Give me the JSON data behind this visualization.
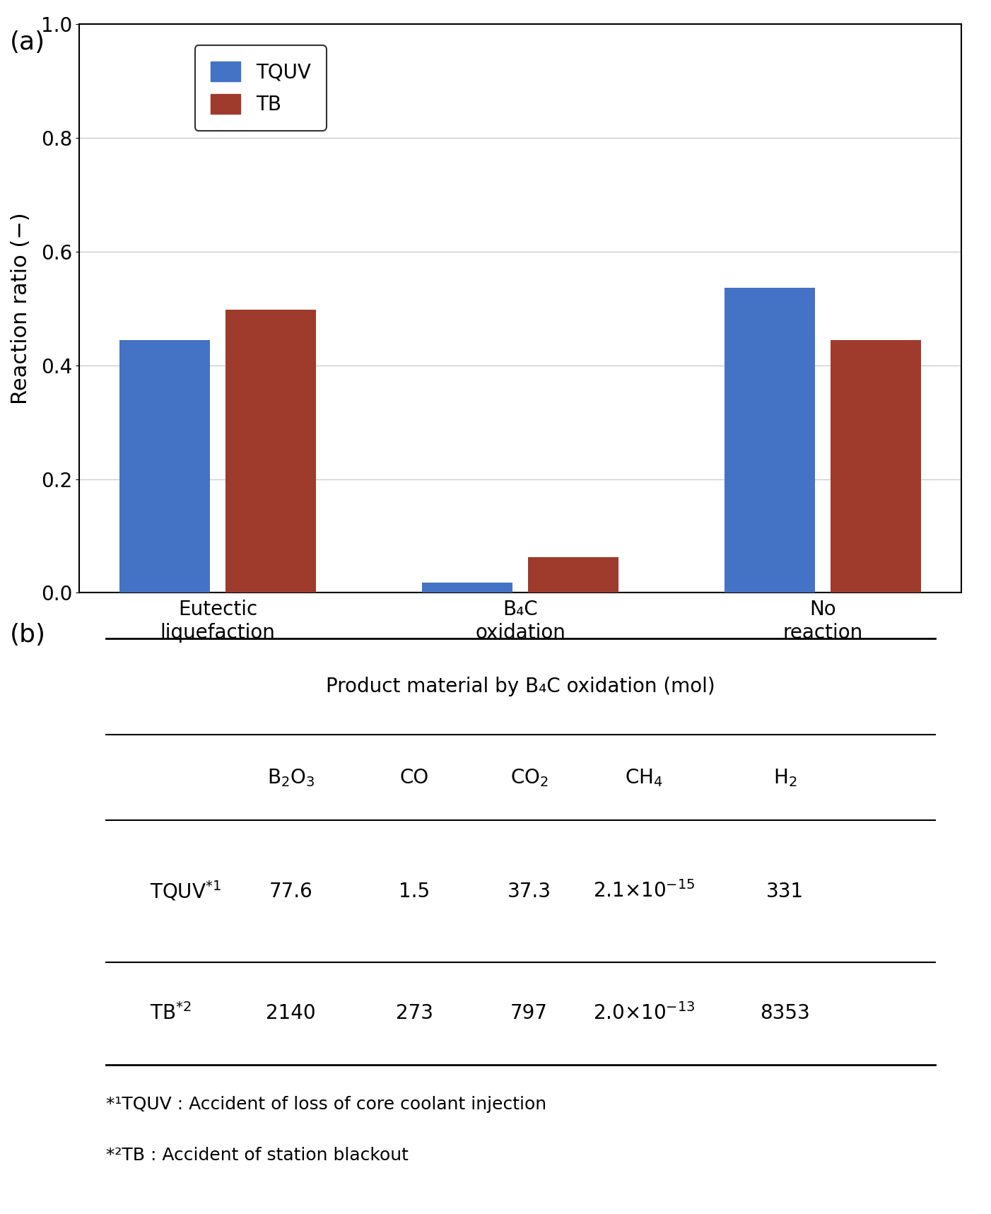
{
  "bar_categories": [
    "Eutectic\nliquefaction",
    "B₄C\noxidation",
    "No\nreaction"
  ],
  "tquv_values": [
    0.445,
    0.018,
    0.537
  ],
  "tb_values": [
    0.498,
    0.063,
    0.444
  ],
  "tquv_color": "#4472C4",
  "tb_color": "#9E3B2C",
  "ylabel": "Reaction ratio (−)",
  "ylim": [
    0.0,
    1.0
  ],
  "yticks": [
    0.0,
    0.2,
    0.4,
    0.6,
    0.8,
    1.0
  ],
  "legend_labels": [
    "TQUV",
    "TB"
  ],
  "panel_a_label": "(a)",
  "panel_b_label": "(b)",
  "table_title": "Product material by B₄C oxidation (mol)",
  "col_headers_display": [
    "B$_2$O$_3$",
    "CO",
    "CO$_2$",
    "CH$_4$",
    "H$_2$"
  ],
  "tquv_display": [
    "77.6",
    "1.5",
    "37.3",
    "2.1×10$^{-15}$",
    "331"
  ],
  "tb_display": [
    "2140",
    "273",
    "797",
    "2.0×10$^{-13}$",
    "8353"
  ],
  "footnote1": "*¹TQUV : Accident of loss of core coolant injection",
  "footnote2": "*²TB : Accident of station blackout",
  "background_color": "#ffffff"
}
